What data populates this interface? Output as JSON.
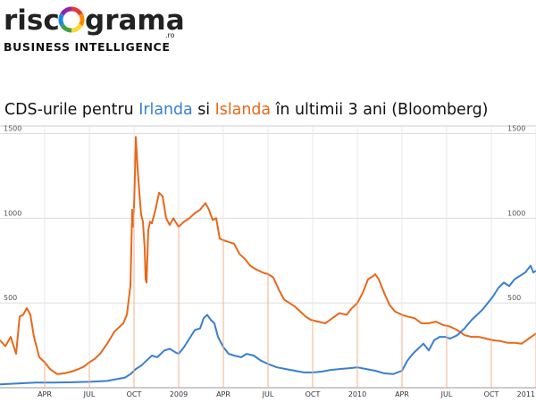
{
  "logo": {
    "name_left": "risc",
    "name_right": "grama",
    "domain": ".ro",
    "tagline": "BUSINESS INTELLIGENCE",
    "ring_colors": [
      "#e53935",
      "#fb8c00",
      "#fdd835",
      "#43a047",
      "#1e88e5",
      "#8e24aa"
    ]
  },
  "title": {
    "prefix": "CDS-urile pentru ",
    "irlanda": "Irlanda",
    "middle": " si ",
    "islanda": "Islanda",
    "suffix": " în ultimii 3 ani (Bloomberg)"
  },
  "chart_data": {
    "type": "line",
    "ylim": [
      0,
      1550
    ],
    "yticks": [
      500,
      1000,
      1500
    ],
    "xlim": [
      2008.0,
      2011.0
    ],
    "xticks": [
      {
        "label": "APR",
        "x": 2008.25
      },
      {
        "label": "JUL",
        "x": 2008.5
      },
      {
        "label": "OCT",
        "x": 2008.75
      },
      {
        "label": "2009",
        "x": 2009.0
      },
      {
        "label": "APR",
        "x": 2009.25
      },
      {
        "label": "JUL",
        "x": 2009.5
      },
      {
        "label": "OCT",
        "x": 2009.75
      },
      {
        "label": "2010",
        "x": 2010.0
      },
      {
        "label": "APR",
        "x": 2010.25
      },
      {
        "label": "JUL",
        "x": 2010.5
      },
      {
        "label": "OCT",
        "x": 2010.75
      },
      {
        "label": "2011",
        "x": 2011.0
      }
    ],
    "series": [
      {
        "name": "Islanda",
        "color": "#e8681a",
        "points": [
          [
            2008.0,
            280
          ],
          [
            2008.03,
            245
          ],
          [
            2008.06,
            300
          ],
          [
            2008.09,
            200
          ],
          [
            2008.11,
            420
          ],
          [
            2008.13,
            430
          ],
          [
            2008.15,
            470
          ],
          [
            2008.17,
            430
          ],
          [
            2008.19,
            300
          ],
          [
            2008.22,
            180
          ],
          [
            2008.25,
            150
          ],
          [
            2008.28,
            110
          ],
          [
            2008.32,
            80
          ],
          [
            2008.36,
            85
          ],
          [
            2008.4,
            95
          ],
          [
            2008.44,
            110
          ],
          [
            2008.47,
            125
          ],
          [
            2008.5,
            150
          ],
          [
            2008.53,
            170
          ],
          [
            2008.56,
            200
          ],
          [
            2008.6,
            260
          ],
          [
            2008.64,
            330
          ],
          [
            2008.67,
            360
          ],
          [
            2008.69,
            380
          ],
          [
            2008.71,
            430
          ],
          [
            2008.73,
            600
          ],
          [
            2008.74,
            1050
          ],
          [
            2008.745,
            950
          ],
          [
            2008.75,
            1060
          ],
          [
            2008.755,
            1250
          ],
          [
            2008.76,
            1480
          ],
          [
            2008.77,
            1300
          ],
          [
            2008.78,
            1150
          ],
          [
            2008.79,
            1020
          ],
          [
            2008.8,
            980
          ],
          [
            2008.81,
            820
          ],
          [
            2008.815,
            640
          ],
          [
            2008.82,
            620
          ],
          [
            2008.83,
            930
          ],
          [
            2008.84,
            980
          ],
          [
            2008.85,
            970
          ],
          [
            2008.87,
            1050
          ],
          [
            2008.89,
            1150
          ],
          [
            2008.91,
            1130
          ],
          [
            2008.93,
            1000
          ],
          [
            2008.95,
            960
          ],
          [
            2008.97,
            1000
          ],
          [
            2009.0,
            950
          ],
          [
            2009.03,
            980
          ],
          [
            2009.06,
            1000
          ],
          [
            2009.09,
            1030
          ],
          [
            2009.12,
            1050
          ],
          [
            2009.15,
            1090
          ],
          [
            2009.17,
            1050
          ],
          [
            2009.19,
            990
          ],
          [
            2009.21,
            1000
          ],
          [
            2009.23,
            880
          ],
          [
            2009.25,
            870
          ],
          [
            2009.28,
            860
          ],
          [
            2009.31,
            850
          ],
          [
            2009.34,
            790
          ],
          [
            2009.37,
            760
          ],
          [
            2009.4,
            720
          ],
          [
            2009.43,
            700
          ],
          [
            2009.47,
            680
          ],
          [
            2009.5,
            670
          ],
          [
            2009.53,
            650
          ],
          [
            2009.56,
            580
          ],
          [
            2009.59,
            520
          ],
          [
            2009.62,
            500
          ],
          [
            2009.65,
            480
          ],
          [
            2009.68,
            450
          ],
          [
            2009.71,
            420
          ],
          [
            2009.74,
            400
          ],
          [
            2009.78,
            390
          ],
          [
            2009.82,
            380
          ],
          [
            2009.86,
            410
          ],
          [
            2009.9,
            440
          ],
          [
            2009.94,
            430
          ],
          [
            2009.97,
            470
          ],
          [
            2010.0,
            500
          ],
          [
            2010.03,
            560
          ],
          [
            2010.06,
            640
          ],
          [
            2010.09,
            660
          ],
          [
            2010.1,
            670
          ],
          [
            2010.12,
            640
          ],
          [
            2010.15,
            560
          ],
          [
            2010.18,
            490
          ],
          [
            2010.21,
            450
          ],
          [
            2010.25,
            430
          ],
          [
            2010.28,
            420
          ],
          [
            2010.32,
            410
          ],
          [
            2010.36,
            380
          ],
          [
            2010.4,
            380
          ],
          [
            2010.44,
            390
          ],
          [
            2010.48,
            370
          ],
          [
            2010.52,
            360
          ],
          [
            2010.56,
            340
          ],
          [
            2010.6,
            310
          ],
          [
            2010.64,
            300
          ],
          [
            2010.68,
            300
          ],
          [
            2010.72,
            290
          ],
          [
            2010.76,
            280
          ],
          [
            2010.8,
            275
          ],
          [
            2010.84,
            265
          ],
          [
            2010.88,
            265
          ],
          [
            2010.92,
            260
          ],
          [
            2010.96,
            290
          ],
          [
            2011.0,
            320
          ]
        ]
      },
      {
        "name": "Irlanda",
        "color": "#3a7fcf",
        "points": [
          [
            2008.0,
            20
          ],
          [
            2008.1,
            25
          ],
          [
            2008.2,
            30
          ],
          [
            2008.3,
            30
          ],
          [
            2008.4,
            32
          ],
          [
            2008.5,
            35
          ],
          [
            2008.6,
            40
          ],
          [
            2008.65,
            50
          ],
          [
            2008.7,
            60
          ],
          [
            2008.73,
            80
          ],
          [
            2008.76,
            110
          ],
          [
            2008.79,
            130
          ],
          [
            2008.82,
            160
          ],
          [
            2008.85,
            190
          ],
          [
            2008.88,
            180
          ],
          [
            2008.92,
            220
          ],
          [
            2008.95,
            230
          ],
          [
            2008.98,
            210
          ],
          [
            2009.0,
            200
          ],
          [
            2009.03,
            240
          ],
          [
            2009.06,
            290
          ],
          [
            2009.09,
            340
          ],
          [
            2009.12,
            350
          ],
          [
            2009.14,
            410
          ],
          [
            2009.16,
            430
          ],
          [
            2009.18,
            400
          ],
          [
            2009.2,
            380
          ],
          [
            2009.22,
            300
          ],
          [
            2009.25,
            240
          ],
          [
            2009.28,
            200
          ],
          [
            2009.31,
            190
          ],
          [
            2009.35,
            180
          ],
          [
            2009.38,
            200
          ],
          [
            2009.42,
            190
          ],
          [
            2009.46,
            160
          ],
          [
            2009.5,
            140
          ],
          [
            2009.55,
            120
          ],
          [
            2009.6,
            110
          ],
          [
            2009.65,
            100
          ],
          [
            2009.7,
            90
          ],
          [
            2009.75,
            90
          ],
          [
            2009.8,
            95
          ],
          [
            2009.85,
            105
          ],
          [
            2009.9,
            110
          ],
          [
            2009.95,
            115
          ],
          [
            2010.0,
            120
          ],
          [
            2010.05,
            110
          ],
          [
            2010.1,
            100
          ],
          [
            2010.15,
            85
          ],
          [
            2010.2,
            80
          ],
          [
            2010.25,
            100
          ],
          [
            2010.28,
            160
          ],
          [
            2010.31,
            200
          ],
          [
            2010.34,
            230
          ],
          [
            2010.37,
            260
          ],
          [
            2010.4,
            220
          ],
          [
            2010.43,
            280
          ],
          [
            2010.46,
            300
          ],
          [
            2010.49,
            300
          ],
          [
            2010.52,
            290
          ],
          [
            2010.56,
            310
          ],
          [
            2010.6,
            350
          ],
          [
            2010.64,
            400
          ],
          [
            2010.67,
            430
          ],
          [
            2010.7,
            460
          ],
          [
            2010.73,
            500
          ],
          [
            2010.76,
            540
          ],
          [
            2010.79,
            590
          ],
          [
            2010.82,
            620
          ],
          [
            2010.85,
            600
          ],
          [
            2010.88,
            640
          ],
          [
            2010.91,
            660
          ],
          [
            2010.94,
            680
          ],
          [
            2010.97,
            720
          ],
          [
            2010.985,
            680
          ],
          [
            2011.0,
            690
          ]
        ]
      }
    ]
  }
}
